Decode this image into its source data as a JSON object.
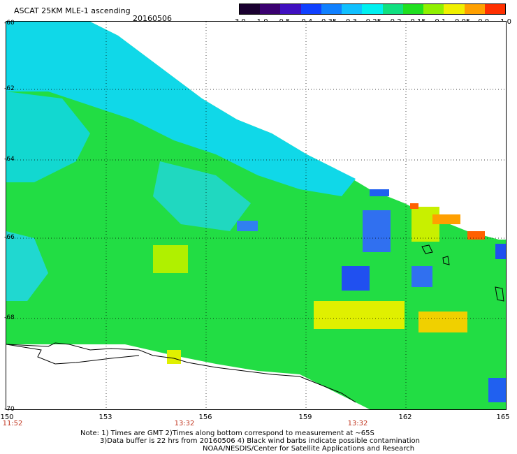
{
  "title": "ASCAT 25KM MLE-1 ascending",
  "date": "20160506",
  "colorbar": {
    "labels": [
      "-3.0",
      "-1.0",
      "-0.5",
      "-0.4",
      "-0.35",
      "-0.3",
      "-0.25",
      "-0.2",
      "-0.15",
      "-0.1",
      "-0.05",
      "0.0",
      "1.0"
    ],
    "colors": [
      "#1a0030",
      "#3a0070",
      "#4010c0",
      "#1040ff",
      "#1080ff",
      "#10c0ff",
      "#00f0f0",
      "#10e080",
      "#20e020",
      "#90f000",
      "#f0f000",
      "#ffa000",
      "#ff3000"
    ]
  },
  "y_axis": {
    "ticks": [
      "-60",
      "-62",
      "-64",
      "-66",
      "-68",
      "-70"
    ]
  },
  "x_axis": {
    "ticks": [
      "150",
      "153",
      "156",
      "159",
      "162",
      "165"
    ]
  },
  "times": [
    "11:52",
    "13:32",
    "13:32"
  ],
  "notes": [
    "Note: 1) Times are GMT 2)Times along bottom correspond to measurement at ~65S",
    "3)Data buffer is 22 hrs from 20160506 4) Black wind barbs indicate possible contamination",
    "NOAA/NESDIS/Center for Satellite Applications and Research"
  ]
}
